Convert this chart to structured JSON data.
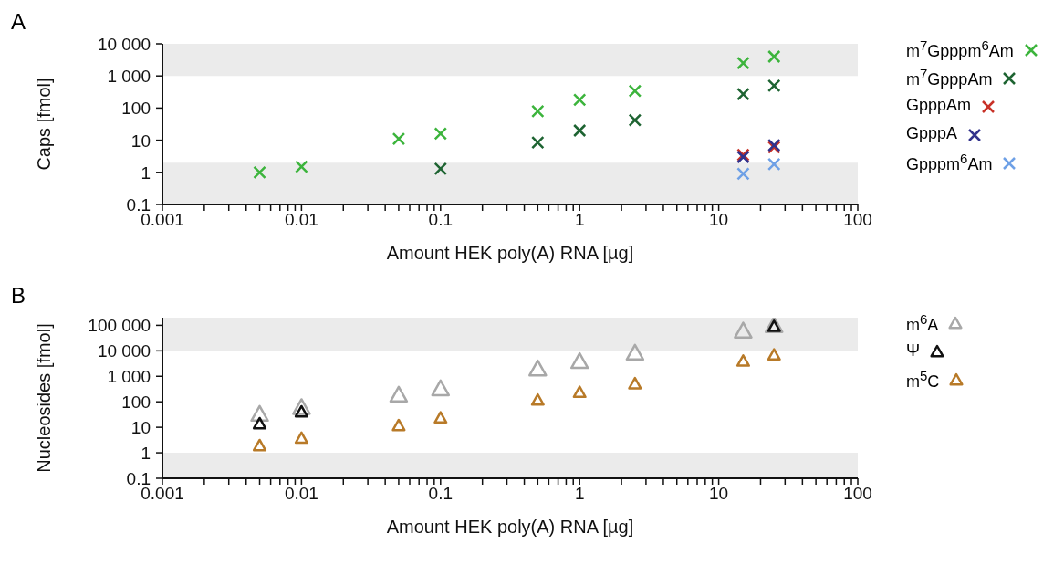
{
  "chart_data": [
    {
      "type": "scatter",
      "title": "A",
      "xlabel": "Amount HEK poly(A) RNA [µg]",
      "ylabel": "Caps [fmol]",
      "log": "xy",
      "marker": "cross",
      "legend": "right",
      "x": [
        0.005,
        0.01,
        0.05,
        0.1,
        0.5,
        1,
        2.5,
        15,
        25
      ],
      "xlim": [
        0.001,
        100
      ],
      "xticks": [
        0.001,
        {
          "value": 0.002,
          "label": null
        },
        {
          "value": 0.003,
          "label": null
        },
        {
          "value": 0.004,
          "label": null
        },
        {
          "value": 0.005,
          "label": null
        },
        {
          "value": 0.006,
          "label": null
        },
        {
          "value": 0.007,
          "label": null
        },
        {
          "value": 0.008,
          "label": null
        },
        {
          "value": 0.009,
          "label": null
        },
        0.01,
        {
          "value": 0.02,
          "label": null
        },
        {
          "value": 0.03,
          "label": null
        },
        {
          "value": 0.04,
          "label": null
        },
        {
          "value": 0.05,
          "label": null
        },
        {
          "value": 0.06,
          "label": null
        },
        {
          "value": 0.07,
          "label": null
        },
        {
          "value": 0.08,
          "label": null
        },
        {
          "value": 0.09,
          "label": null
        },
        0.1,
        {
          "value": 0.2,
          "label": null
        },
        {
          "value": 0.3,
          "label": null
        },
        {
          "value": 0.4,
          "label": null
        },
        {
          "value": 0.5,
          "label": null
        },
        {
          "value": 0.6,
          "label": null
        },
        {
          "value": 0.7,
          "label": null
        },
        {
          "value": 0.8,
          "label": null
        },
        {
          "value": 0.9,
          "label": null
        },
        1,
        {
          "value": 2,
          "label": null
        },
        {
          "value": 3,
          "label": null
        },
        {
          "value": 4,
          "label": null
        },
        {
          "value": 5,
          "label": null
        },
        {
          "value": 6,
          "label": null
        },
        {
          "value": 7,
          "label": null
        },
        {
          "value": 8,
          "label": null
        },
        {
          "value": 9,
          "label": null
        },
        10,
        {
          "value": 20,
          "label": null
        },
        {
          "value": 30,
          "label": null
        },
        {
          "value": 40,
          "label": null
        },
        {
          "value": 50,
          "label": null
        },
        {
          "value": 60,
          "label": null
        },
        {
          "value": 70,
          "label": null
        },
        {
          "value": 80,
          "label": null
        },
        {
          "value": 90,
          "label": null
        },
        100
      ],
      "ylim": [
        0.1,
        10000
      ],
      "yticks": [
        0.1,
        1,
        10,
        100,
        {
          "value": 1000,
          "label": "1 000"
        },
        {
          "value": 10000,
          "label": "10 000"
        }
      ],
      "bands": [
        {
          "axis": "y",
          "from": 1000,
          "to": 10000,
          "color": "#ebebeb"
        },
        {
          "axis": "y",
          "from": 0.1,
          "to": 2,
          "color": "#ebebeb"
        }
      ],
      "series": [
        {
          "name": "m$^{7}$Gpppm$^{6}$Am",
          "color": "#3cb43c",
          "values": [
            1,
            1.5,
            11,
            16,
            80,
            180,
            340,
            2500,
            4000
          ]
        },
        {
          "name": "m$^{7}$GpppAm",
          "color": "#1e6432",
          "values": [
            null,
            null,
            null,
            1.3,
            8.5,
            20,
            42,
            270,
            500
          ]
        },
        {
          "name": "GpppAm",
          "color": "#c83228",
          "values": [
            null,
            null,
            null,
            null,
            null,
            null,
            null,
            3.5,
            6
          ]
        },
        {
          "name": "GpppA",
          "color": "#32328c",
          "values": [
            null,
            null,
            null,
            null,
            null,
            null,
            null,
            3,
            7
          ]
        },
        {
          "name": "Gpppm$^{6}$Am",
          "color": "#6ea0e6",
          "values": [
            null,
            null,
            null,
            null,
            null,
            null,
            null,
            0.9,
            1.8
          ]
        }
      ]
    },
    {
      "type": "scatter",
      "title": "B",
      "xlabel": "Amount HEK poly(A) RNA [µg]",
      "ylabel": "Nucleosides [fmol]",
      "log": "xy",
      "marker": "triangle",
      "legend": "right",
      "x": [
        0.005,
        0.01,
        0.05,
        0.1,
        0.5,
        1,
        2.5,
        15,
        25
      ],
      "xlim": [
        0.001,
        100
      ],
      "xticks": [
        0.001,
        {
          "value": 0.002,
          "label": null
        },
        {
          "value": 0.003,
          "label": null
        },
        {
          "value": 0.004,
          "label": null
        },
        {
          "value": 0.005,
          "label": null
        },
        {
          "value": 0.006,
          "label": null
        },
        {
          "value": 0.007,
          "label": null
        },
        {
          "value": 0.008,
          "label": null
        },
        {
          "value": 0.009,
          "label": null
        },
        0.01,
        {
          "value": 0.02,
          "label": null
        },
        {
          "value": 0.03,
          "label": null
        },
        {
          "value": 0.04,
          "label": null
        },
        {
          "value": 0.05,
          "label": null
        },
        {
          "value": 0.06,
          "label": null
        },
        {
          "value": 0.07,
          "label": null
        },
        {
          "value": 0.08,
          "label": null
        },
        {
          "value": 0.09,
          "label": null
        },
        0.1,
        {
          "value": 0.2,
          "label": null
        },
        {
          "value": 0.3,
          "label": null
        },
        {
          "value": 0.4,
          "label": null
        },
        {
          "value": 0.5,
          "label": null
        },
        {
          "value": 0.6,
          "label": null
        },
        {
          "value": 0.7,
          "label": null
        },
        {
          "value": 0.8,
          "label": null
        },
        {
          "value": 0.9,
          "label": null
        },
        1,
        {
          "value": 2,
          "label": null
        },
        {
          "value": 3,
          "label": null
        },
        {
          "value": 4,
          "label": null
        },
        {
          "value": 5,
          "label": null
        },
        {
          "value": 6,
          "label": null
        },
        {
          "value": 7,
          "label": null
        },
        {
          "value": 8,
          "label": null
        },
        {
          "value": 9,
          "label": null
        },
        10,
        {
          "value": 20,
          "label": null
        },
        {
          "value": 30,
          "label": null
        },
        {
          "value": 40,
          "label": null
        },
        {
          "value": 50,
          "label": null
        },
        {
          "value": 60,
          "label": null
        },
        {
          "value": 70,
          "label": null
        },
        {
          "value": 80,
          "label": null
        },
        {
          "value": 90,
          "label": null
        },
        100
      ],
      "ylim": [
        0.1,
        200000
      ],
      "yticks": [
        0.1,
        1,
        10,
        100,
        {
          "value": 1000,
          "label": "1 000"
        },
        {
          "value": 10000,
          "label": "10 000"
        },
        {
          "value": 100000,
          "label": "100 000"
        }
      ],
      "bands": [
        {
          "axis": "y",
          "from": 10000,
          "to": 200000,
          "color": "#ebebeb"
        },
        {
          "axis": "y",
          "from": 0.1,
          "to": 1,
          "color": "#ebebeb"
        }
      ],
      "series": [
        {
          "name": "m$^{6}$A",
          "color": "#a8a8a8",
          "values": [
            30,
            55,
            170,
            300,
            1800,
            3500,
            7500,
            55000,
            90000
          ]
        },
        {
          "name": "Ψ",
          "color": "#111111",
          "values": [
            13,
            38,
            null,
            null,
            null,
            null,
            null,
            null,
            85000
          ]
        },
        {
          "name": "m$^{5}$C",
          "color": "#b87a28",
          "values": [
            1.8,
            3.5,
            11,
            22,
            110,
            220,
            480,
            3700,
            6500
          ]
        }
      ]
    }
  ]
}
